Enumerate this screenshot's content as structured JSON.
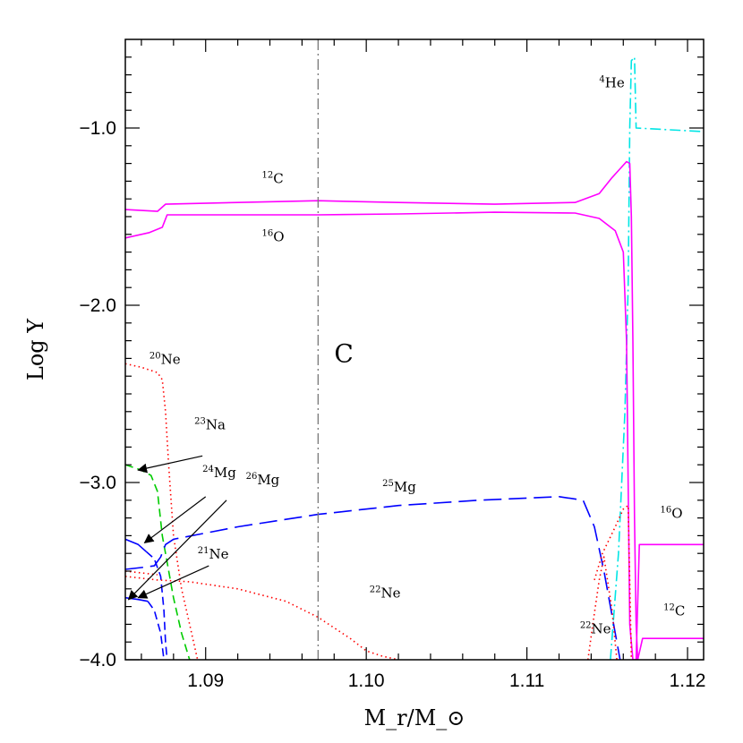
{
  "chart_data": {
    "type": "line",
    "title": "",
    "xlabel": "M_r/M_⊙",
    "ylabel": "Log Y",
    "xlim": [
      1.085,
      1.121
    ],
    "ylim": [
      -4.0,
      -0.5
    ],
    "x_ticks": [
      "1.09",
      "1.10",
      "1.11",
      "1.12"
    ],
    "y_ticks": [
      "−1.0",
      "−2.0",
      "−3.0",
      "−4.0"
    ],
    "grid": false,
    "legend": "none",
    "boundary_line": {
      "x": 1.097,
      "label": "C",
      "style": "dash-dot",
      "color": "#777777"
    },
    "series": [
      {
        "id": "he4",
        "color": "#00e5e5",
        "style": "dash-dot",
        "points": [
          [
            1.1152,
            -4.0
          ],
          [
            1.1157,
            -3.4
          ],
          [
            1.1161,
            -2.6
          ],
          [
            1.1163,
            -1.9
          ],
          [
            1.1164,
            -1.0
          ],
          [
            1.1165,
            -0.62
          ],
          [
            1.1167,
            -0.6
          ],
          [
            1.1168,
            -1.0
          ],
          [
            1.121,
            -1.02
          ]
        ]
      },
      {
        "id": "c12",
        "color": "#ff00ff",
        "style": "solid",
        "points": [
          [
            1.085,
            -1.46
          ],
          [
            1.087,
            -1.47
          ],
          [
            1.0875,
            -1.43
          ],
          [
            1.092,
            -1.42
          ],
          [
            1.097,
            -1.41
          ],
          [
            1.102,
            -1.42
          ],
          [
            1.108,
            -1.43
          ],
          [
            1.113,
            -1.42
          ],
          [
            1.1145,
            -1.37
          ],
          [
            1.1153,
            -1.28
          ],
          [
            1.1158,
            -1.23
          ],
          [
            1.1162,
            -1.19
          ],
          [
            1.1164,
            -1.2
          ],
          [
            1.1165,
            -1.5
          ],
          [
            1.1166,
            -2.2
          ],
          [
            1.1167,
            -3.2
          ],
          [
            1.1168,
            -3.8
          ],
          [
            1.1169,
            -4.0
          ],
          [
            1.1172,
            -3.88
          ],
          [
            1.121,
            -3.88
          ]
        ]
      },
      {
        "id": "o16",
        "color": "#ff00ff",
        "style": "solid",
        "points": [
          [
            1.085,
            -1.62
          ],
          [
            1.0865,
            -1.59
          ],
          [
            1.0873,
            -1.56
          ],
          [
            1.0876,
            -1.49
          ],
          [
            1.092,
            -1.49
          ],
          [
            1.097,
            -1.49
          ],
          [
            1.102,
            -1.485
          ],
          [
            1.108,
            -1.475
          ],
          [
            1.113,
            -1.48
          ],
          [
            1.1145,
            -1.51
          ],
          [
            1.1155,
            -1.58
          ],
          [
            1.116,
            -1.7
          ],
          [
            1.1162,
            -2.2
          ],
          [
            1.1163,
            -3.0
          ],
          [
            1.1164,
            -3.8
          ],
          [
            1.1166,
            -4.0
          ],
          [
            1.1168,
            -4.0
          ],
          [
            1.117,
            -3.35
          ],
          [
            1.121,
            -3.35
          ]
        ]
      },
      {
        "id": "ne20",
        "color": "#ff0000",
        "style": "dotted",
        "points": [
          [
            1.085,
            -2.33
          ],
          [
            1.086,
            -2.35
          ],
          [
            1.087,
            -2.38
          ],
          [
            1.0873,
            -2.42
          ],
          [
            1.0875,
            -2.6
          ],
          [
            1.0877,
            -2.9
          ],
          [
            1.088,
            -3.3
          ],
          [
            1.0885,
            -3.6
          ],
          [
            1.089,
            -3.8
          ],
          [
            1.0895,
            -4.0
          ]
        ]
      },
      {
        "id": "na23",
        "color": "#00cc00",
        "style": "dashed",
        "points": [
          [
            1.085,
            -2.9
          ],
          [
            1.086,
            -2.93
          ],
          [
            1.0866,
            -2.96
          ],
          [
            1.087,
            -3.05
          ],
          [
            1.0873,
            -3.3
          ],
          [
            1.0876,
            -3.45
          ],
          [
            1.088,
            -3.65
          ],
          [
            1.0885,
            -3.85
          ],
          [
            1.089,
            -4.0
          ]
        ]
      },
      {
        "id": "mg24",
        "color": "#0000ff",
        "style": "solid",
        "points": [
          [
            1.085,
            -3.32
          ],
          [
            1.0858,
            -3.35
          ],
          [
            1.0863,
            -3.39
          ]
        ]
      },
      {
        "id": "mg24_cont",
        "color": "#0000ff",
        "style": "dashed",
        "points": [
          [
            1.0863,
            -3.39
          ],
          [
            1.0868,
            -3.43
          ],
          [
            1.0872,
            -3.53
          ],
          [
            1.0874,
            -3.72
          ],
          [
            1.0875,
            -3.9
          ],
          [
            1.0876,
            -4.0
          ]
        ]
      },
      {
        "id": "mg26",
        "color": "#0000ff",
        "style": "solid",
        "points": [
          [
            1.085,
            -3.65
          ],
          [
            1.0858,
            -3.66
          ],
          [
            1.0864,
            -3.67
          ]
        ]
      },
      {
        "id": "mg26_cont",
        "color": "#0000ff",
        "style": "dashed",
        "points": [
          [
            1.0864,
            -3.67
          ],
          [
            1.0868,
            -3.72
          ],
          [
            1.0872,
            -3.85
          ],
          [
            1.0874,
            -4.0
          ]
        ]
      },
      {
        "id": "ne22_early",
        "color": "#ff0000",
        "style": "dotted",
        "points": [
          [
            1.085,
            -3.5
          ],
          [
            1.087,
            -3.52
          ]
        ]
      },
      {
        "id": "mg25",
        "color": "#0000ff",
        "style": "long-dash",
        "points": [
          [
            1.085,
            -3.49
          ],
          [
            1.086,
            -3.48
          ],
          [
            1.0868,
            -3.47
          ],
          [
            1.0872,
            -3.42
          ],
          [
            1.0875,
            -3.35
          ],
          [
            1.088,
            -3.32
          ],
          [
            1.092,
            -3.25
          ],
          [
            1.097,
            -3.18
          ],
          [
            1.102,
            -3.13
          ],
          [
            1.107,
            -3.1
          ],
          [
            1.112,
            -3.08
          ],
          [
            1.1135,
            -3.1
          ],
          [
            1.1142,
            -3.25
          ],
          [
            1.1148,
            -3.5
          ],
          [
            1.1153,
            -3.75
          ],
          [
            1.1157,
            -3.95
          ],
          [
            1.1158,
            -4.0
          ]
        ]
      },
      {
        "id": "ne22",
        "color": "#ff0000",
        "style": "dotted",
        "points": [
          [
            1.085,
            -3.53
          ],
          [
            1.087,
            -3.55
          ],
          [
            1.089,
            -3.56
          ],
          [
            1.092,
            -3.6
          ],
          [
            1.095,
            -3.67
          ],
          [
            1.097,
            -3.76
          ],
          [
            1.099,
            -3.88
          ],
          [
            1.1,
            -3.95
          ],
          [
            1.101,
            -3.98
          ],
          [
            1.102,
            -4.0
          ]
        ]
      },
      {
        "id": "ne22_right",
        "color": "#ff0000",
        "style": "dotted",
        "points": [
          [
            1.1138,
            -4.0
          ],
          [
            1.1141,
            -3.8
          ],
          [
            1.1145,
            -3.55
          ],
          [
            1.1148,
            -3.42
          ],
          [
            1.1153,
            -3.72
          ],
          [
            1.1156,
            -4.0
          ]
        ]
      },
      {
        "id": "o16_right",
        "color": "#ff0000",
        "style": "dotted",
        "points": [
          [
            1.1142,
            -3.55
          ],
          [
            1.1147,
            -3.4
          ],
          [
            1.1155,
            -3.25
          ],
          [
            1.116,
            -3.15
          ],
          [
            1.1163,
            -3.13
          ],
          [
            1.1165,
            -4.0
          ]
        ]
      }
    ],
    "annotations": [
      {
        "mass": "4",
        "el": "He",
        "x": 1.1145,
        "y": -0.77
      },
      {
        "mass": "12",
        "el": "C",
        "x": 1.0935,
        "y": -1.31
      },
      {
        "mass": "16",
        "el": "O",
        "x": 1.0935,
        "y": -1.64
      },
      {
        "mass": "20",
        "el": "Ne",
        "x": 1.0865,
        "y": -2.33
      },
      {
        "mass": "23",
        "el": "Na",
        "x": 1.0893,
        "y": -2.7
      },
      {
        "mass": "24",
        "el": "Mg",
        "x": 1.0898,
        "y": -2.97
      },
      {
        "mass": "26",
        "el": "Mg",
        "x": 1.0925,
        "y": -3.01
      },
      {
        "mass": "25",
        "el": "Mg",
        "x": 1.101,
        "y": -3.05
      },
      {
        "mass": "21",
        "el": "Ne",
        "x": 1.0895,
        "y": -3.43
      },
      {
        "mass": "22",
        "el": "Ne",
        "x": 1.1002,
        "y": -3.65
      },
      {
        "mass": "22",
        "el": "Ne",
        "x": 1.1133,
        "y": -3.85
      },
      {
        "mass": "16",
        "el": "O",
        "x": 1.1183,
        "y": -3.2
      },
      {
        "mass": "12",
        "el": "C",
        "x": 1.1185,
        "y": -3.75
      }
    ],
    "arrows": [
      {
        "from": [
          1.0898,
          -2.85
        ],
        "to": [
          1.0858,
          -2.93
        ]
      },
      {
        "from": [
          1.09,
          -3.08
        ],
        "to": [
          1.0862,
          -3.34
        ]
      },
      {
        "from": [
          1.0913,
          -3.1
        ],
        "to": [
          1.0852,
          -3.66
        ]
      },
      {
        "from": [
          1.0902,
          -3.47
        ],
        "to": [
          1.0858,
          -3.65
        ]
      }
    ]
  }
}
